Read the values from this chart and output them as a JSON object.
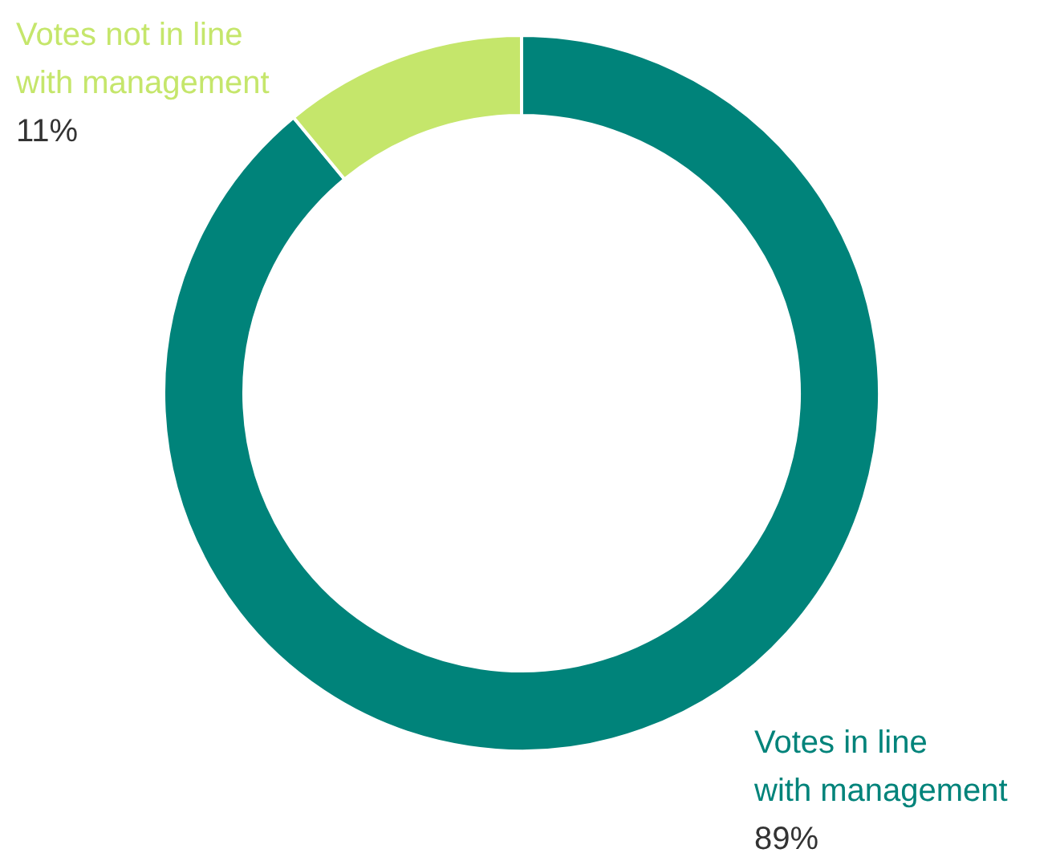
{
  "chart_data": {
    "type": "donut",
    "categories": [
      "Votes in line with management",
      "Votes not in line with management"
    ],
    "values": [
      89,
      11
    ],
    "colors": [
      "#00837a",
      "#c5e66b"
    ],
    "value_labels": [
      "89%",
      "11%"
    ]
  }
}
